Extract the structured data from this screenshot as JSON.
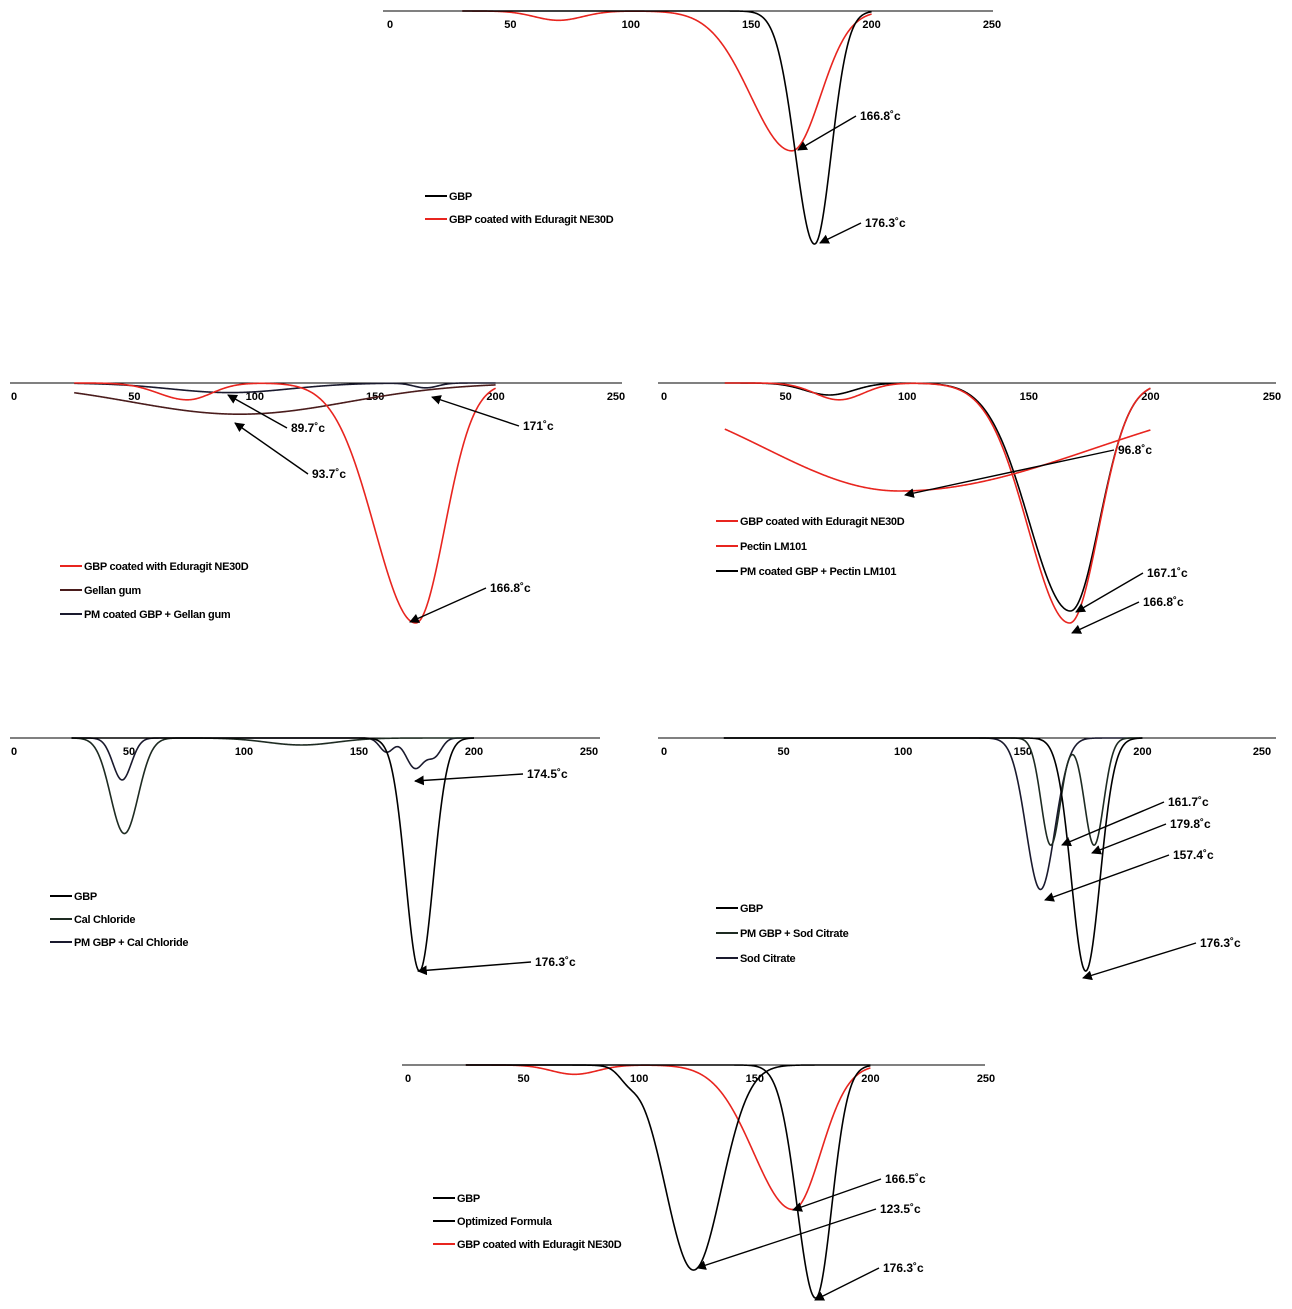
{
  "chart_data": [
    {
      "type": "line",
      "x_ticks": [
        0,
        50,
        100,
        150,
        200,
        250
      ],
      "xlim": [
        0,
        250
      ],
      "series": [
        {
          "name": "GBP",
          "color": "#000000",
          "peaks": [
            {
              "x": 176.3,
              "depth": 1.0,
              "wl": 8,
              "wr": 7
            }
          ]
        },
        {
          "name": "GBP coated with Eduragit NE30D",
          "color": "#e8251f",
          "peaks": [
            {
              "x": 166.8,
              "depth": 0.6,
              "wl": 17,
              "wr": 12
            },
            {
              "x": 70,
              "depth": 0.04,
              "wl": 10,
              "wr": 10
            }
          ]
        }
      ],
      "annotations": [
        {
          "text": "166.8˚c",
          "x": 166.8
        },
        {
          "text": "176.3˚c",
          "x": 176.3
        }
      ]
    },
    {
      "type": "line",
      "x_ticks": [
        0,
        50,
        100,
        150,
        200,
        250
      ],
      "xlim": [
        0,
        250
      ],
      "series": [
        {
          "name": "GBP coated with Eduragit NE30D",
          "color": "#e8251f",
          "peaks": [
            {
              "x": 166.8,
              "depth": 1.0,
              "wl": 17,
              "wr": 12
            },
            {
              "x": 72,
              "depth": 0.07,
              "wl": 12,
              "wr": 10
            }
          ]
        },
        {
          "name": "Gellan gum",
          "color": "#4a1c1c",
          "peaks": [
            {
              "x": 93.7,
              "depth": 0.13,
              "wl": 45,
              "wr": 45
            }
          ]
        },
        {
          "name": "PM coated GBP + Gellan gum",
          "color": "#1a1a2e",
          "peaks": [
            {
              "x": 89.7,
              "depth": 0.04,
              "wl": 25,
              "wr": 25
            },
            {
              "x": 171,
              "depth": 0.02,
              "wl": 5,
              "wr": 5
            }
          ]
        }
      ],
      "annotations": [
        {
          "text": "89.7˚c",
          "x": 89.7
        },
        {
          "text": "171˚c",
          "x": 171
        },
        {
          "text": "93.7˚c",
          "x": 93.7
        },
        {
          "text": "166.8˚c",
          "x": 166.8
        }
      ]
    },
    {
      "type": "line",
      "x_ticks": [
        0,
        50,
        100,
        150,
        200,
        250
      ],
      "xlim": [
        0,
        250
      ],
      "series": [
        {
          "name": "GBP coated with Eduragit NE30D",
          "color": "#e8251f",
          "peaks": [
            {
              "x": 166.8,
              "depth": 1.0,
              "wl": 17,
              "wr": 12
            },
            {
              "x": 72,
              "depth": 0.07,
              "wl": 10,
              "wr": 10
            }
          ]
        },
        {
          "name": "Pectin LM101",
          "color": "#e8251f",
          "peaks": [
            {
              "x": 96.8,
              "depth": 0.45,
              "wl": 55,
              "wr": 80
            }
          ]
        },
        {
          "name": "PM coated GBP + Pectin LM101",
          "color": "#000000",
          "peaks": [
            {
              "x": 167.1,
              "depth": 0.95,
              "wl": 17,
              "wr": 12
            },
            {
              "x": 68,
              "depth": 0.05,
              "wl": 10,
              "wr": 10
            }
          ]
        }
      ],
      "annotations": [
        {
          "text": "96.8˚c",
          "x": 96.8
        },
        {
          "text": "167.1˚c",
          "x": 167.1
        },
        {
          "text": "166.8˚c",
          "x": 166.8
        }
      ]
    },
    {
      "type": "line",
      "x_ticks": [
        0,
        50,
        100,
        150,
        200,
        250
      ],
      "xlim": [
        0,
        250
      ],
      "series": [
        {
          "name": "GBP",
          "color": "#000000",
          "peaks": [
            {
              "x": 176.3,
              "depth": 1.0,
              "wl": 6,
              "wr": 6
            }
          ]
        },
        {
          "name": "Cal Chloride",
          "color": "#1e2b22",
          "peaks": [
            {
              "x": 48,
              "depth": 0.41,
              "wl": 6,
              "wr": 6
            },
            {
              "x": 125,
              "depth": 0.03,
              "wl": 15,
              "wr": 15
            }
          ]
        },
        {
          "name": "PM GBP + Cal Chloride",
          "color": "#1a1a2e",
          "peaks": [
            {
              "x": 174.5,
              "depth": 0.13,
              "wl": 4,
              "wr": 4
            },
            {
              "x": 47,
              "depth": 0.18,
              "wl": 4,
              "wr": 4
            },
            {
              "x": 162,
              "depth": 0.06,
              "wl": 3,
              "wr": 3
            },
            {
              "x": 183,
              "depth": 0.07,
              "wl": 3,
              "wr": 3
            }
          ]
        }
      ],
      "annotations": [
        {
          "text": "174.5˚c",
          "x": 174.5
        },
        {
          "text": "176.3˚c",
          "x": 176.3
        }
      ]
    },
    {
      "type": "line",
      "x_ticks": [
        0,
        50,
        100,
        150,
        200,
        250
      ],
      "xlim": [
        0,
        250
      ],
      "series": [
        {
          "name": "GBP",
          "color": "#000000",
          "peaks": [
            {
              "x": 176.3,
              "depth": 1.0,
              "wl": 6,
              "wr": 6
            }
          ]
        },
        {
          "name": "PM GBP + Sod Citrate",
          "color": "#1e2b22",
          "peaks": [
            {
              "x": 161.7,
              "depth": 0.46,
              "wl": 4,
              "wr": 4
            },
            {
              "x": 179.8,
              "depth": 0.46,
              "wl": 4,
              "wr": 4
            }
          ]
        },
        {
          "name": "Sod Citrate",
          "color": "#1a1a2e",
          "peaks": [
            {
              "x": 157.4,
              "depth": 0.65,
              "wl": 6,
              "wr": 6
            }
          ]
        }
      ],
      "annotations": [
        {
          "text": "161.7˚c",
          "x": 161.7
        },
        {
          "text": "179.8˚c",
          "x": 179.8
        },
        {
          "text": "157.4˚c",
          "x": 157.4
        },
        {
          "text": "176.3˚c",
          "x": 176.3
        }
      ]
    },
    {
      "type": "line",
      "x_ticks": [
        0,
        50,
        100,
        150,
        200,
        250
      ],
      "xlim": [
        0,
        250
      ],
      "series": [
        {
          "name": "GBP",
          "color": "#000000",
          "peaks": [
            {
              "x": 176.3,
              "depth": 1.0,
              "wl": 8,
              "wr": 7
            }
          ]
        },
        {
          "name": "Optimized Formula",
          "color": "#000000",
          "peaks": [
            {
              "x": 123.5,
              "depth": 0.88,
              "wl": 12,
              "wr": 12
            },
            {
              "x": 95,
              "depth": 0.04,
              "wl": 4,
              "wr": 4
            }
          ]
        },
        {
          "name": "GBP coated with Eduragit NE30D",
          "color": "#e8251f",
          "peaks": [
            {
              "x": 166.5,
              "depth": 0.62,
              "wl": 17,
              "wr": 12
            },
            {
              "x": 72,
              "depth": 0.04,
              "wl": 10,
              "wr": 10
            }
          ]
        }
      ],
      "annotations": [
        {
          "text": "166.5˚c",
          "x": 166.5
        },
        {
          "text": "123.5˚c",
          "x": 123.5
        },
        {
          "text": "176.3˚c",
          "x": 176.3
        }
      ]
    }
  ]
}
